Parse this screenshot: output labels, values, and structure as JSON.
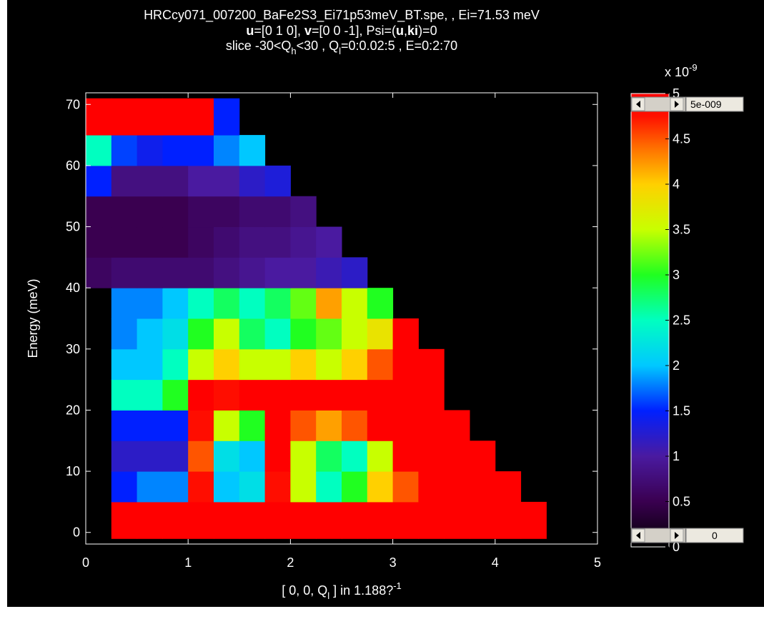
{
  "chart_data": {
    "type": "heatmap",
    "title_line1": "HRCcy071_007200_BaFe2S3_Ei71p53meV_BT.spe, , Ei=71.53 meV",
    "title_line2_parts": [
      "u",
      "=[0 1 0], ",
      "v",
      "=[0 0 -1], Psi=(",
      "u",
      ",",
      "ki",
      ")=0"
    ],
    "title_line3_parts": [
      "slice -30<Q",
      "h",
      "<30 , Q",
      "l",
      "=0:0.02:5 , E=0:2:70"
    ],
    "xlabel_parts": [
      "[ 0, 0, Q",
      "l",
      " ]  in 1.188?",
      "-1"
    ],
    "ylabel": "Energy  (meV)",
    "colorbar_exponent_parts": [
      "x 10",
      "-9"
    ],
    "colorbar_controls": {
      "max_text": "5e-009",
      "min_text": "0"
    },
    "colormap": "jet",
    "xlim": [
      0,
      5
    ],
    "ylim": [
      -1.9,
      71.9
    ],
    "xticks": [
      0,
      1,
      2,
      3,
      4,
      5
    ],
    "yticks": [
      0,
      10,
      20,
      30,
      40,
      50,
      60,
      70
    ],
    "clim": [
      0,
      5
    ],
    "cticks": [
      0,
      0.5,
      1,
      1.5,
      2,
      2.5,
      3,
      3.5,
      4,
      4.5,
      5
    ],
    "xbins": [
      0,
      0.25,
      0.5,
      0.75,
      1,
      1.25,
      1.5,
      1.75,
      2,
      2.25,
      2.5,
      2.75,
      3,
      3.25,
      3.5,
      3.75,
      4,
      4.25,
      4.5
    ],
    "ybins": [
      -1,
      5,
      10,
      15,
      20,
      25,
      30,
      35,
      40,
      45,
      50,
      55,
      60,
      65,
      71
    ],
    "z": [
      [
        null,
        5,
        5,
        5,
        5,
        5,
        5,
        5,
        5,
        5,
        5,
        5,
        5,
        5,
        5,
        5,
        5,
        5
      ],
      [
        null,
        1.5,
        1.8,
        1.8,
        4.8,
        2.0,
        2.2,
        4.8,
        3.5,
        2.5,
        3.0,
        4.0,
        4.5,
        5,
        5,
        5,
        5,
        null
      ],
      [
        null,
        1.2,
        1.2,
        1.2,
        4.5,
        2.2,
        2.0,
        5,
        3.5,
        2.8,
        2.5,
        3.5,
        5,
        5,
        5,
        5,
        null,
        null
      ],
      [
        null,
        1.5,
        1.5,
        1.5,
        4.8,
        3.5,
        3.0,
        5,
        4.5,
        4.2,
        4.5,
        5,
        5,
        5,
        5,
        null,
        null,
        null
      ],
      [
        null,
        2.5,
        2.5,
        3.0,
        5,
        4.8,
        5,
        5,
        5,
        5,
        5,
        5,
        5,
        5,
        null,
        null,
        null,
        null
      ],
      [
        null,
        2.0,
        2.0,
        2.5,
        3.5,
        4.0,
        3.5,
        3.5,
        4.0,
        3.5,
        4.0,
        4.5,
        5,
        5,
        null,
        null,
        null,
        null
      ],
      [
        null,
        1.8,
        2.0,
        2.2,
        3.0,
        3.5,
        2.8,
        2.5,
        3.0,
        3.2,
        3.5,
        3.8,
        5,
        null,
        null,
        null,
        null,
        null
      ],
      [
        null,
        1.8,
        1.8,
        2.0,
        2.5,
        2.8,
        2.5,
        2.8,
        3.2,
        4.2,
        3.5,
        3.0,
        null,
        null,
        null,
        null,
        null,
        null
      ],
      [
        0.6,
        0.7,
        0.7,
        0.7,
        0.7,
        0.8,
        0.9,
        1.0,
        1.0,
        1.1,
        1.2,
        null,
        null,
        null,
        null,
        null,
        null,
        null
      ],
      [
        0.5,
        0.5,
        0.5,
        0.5,
        0.6,
        0.7,
        0.8,
        0.8,
        0.9,
        1.0,
        null,
        null,
        null,
        null,
        null,
        null,
        null,
        null
      ],
      [
        0.5,
        0.5,
        0.5,
        0.5,
        0.6,
        0.6,
        0.7,
        0.7,
        0.8,
        null,
        null,
        null,
        null,
        null,
        null,
        null,
        null,
        null
      ],
      [
        1.5,
        0.8,
        0.8,
        0.8,
        1.0,
        1.0,
        1.2,
        1.3,
        null,
        null,
        null,
        null,
        null,
        null,
        null,
        null,
        null,
        null
      ],
      [
        2.5,
        1.6,
        1.4,
        1.5,
        1.5,
        1.8,
        2.0,
        null,
        null,
        null,
        null,
        null,
        null,
        null,
        null,
        null,
        null,
        null
      ],
      [
        5,
        5,
        5,
        5,
        5,
        1.5,
        null,
        null,
        null,
        null,
        null,
        null,
        null,
        null,
        null,
        null,
        null,
        null
      ]
    ]
  }
}
